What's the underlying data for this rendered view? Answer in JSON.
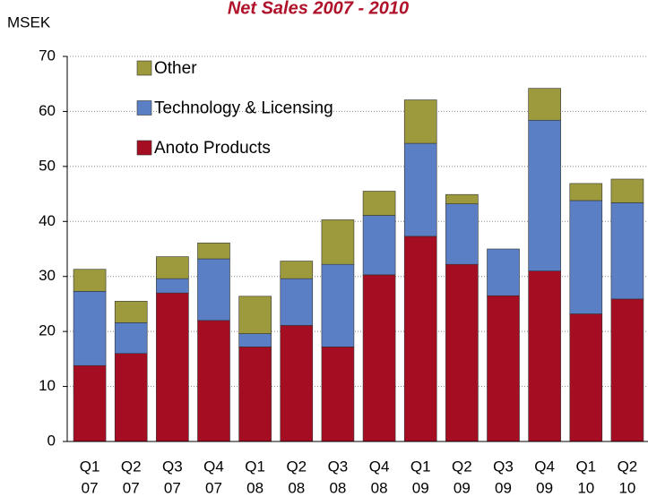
{
  "chart_data": {
    "type": "stacked_bar",
    "title": "Net Sales 2007 - 2010",
    "y_label": "MSEK",
    "categories": [
      [
        "Q1",
        "07"
      ],
      [
        "Q2",
        "07"
      ],
      [
        "Q3",
        "07"
      ],
      [
        "Q4",
        "07"
      ],
      [
        "Q1",
        "08"
      ],
      [
        "Q2",
        "08"
      ],
      [
        "Q3",
        "08"
      ],
      [
        "Q4",
        "08"
      ],
      [
        "Q1",
        "09"
      ],
      [
        "Q2",
        "09"
      ],
      [
        "Q3",
        "09"
      ],
      [
        "Q4",
        "09"
      ],
      [
        "Q1",
        "10"
      ],
      [
        "Q2",
        "10"
      ]
    ],
    "series": [
      {
        "name": "Anoto Products",
        "color": "#a50d22",
        "values": [
          13.8,
          16.0,
          27.0,
          22.0,
          17.2,
          21.1,
          17.2,
          30.3,
          37.3,
          32.2,
          26.5,
          31.0,
          23.2,
          25.9
        ]
      },
      {
        "name": "Technology & Licensing",
        "color": "#5b7fc4",
        "values": [
          13.5,
          5.6,
          2.6,
          11.2,
          2.4,
          8.5,
          15.0,
          10.8,
          16.9,
          11.0,
          8.5,
          27.4,
          20.6,
          17.5
        ]
      },
      {
        "name": "Other",
        "color": "#9c9a3c",
        "values": [
          4.0,
          3.9,
          4.0,
          2.9,
          6.8,
          3.2,
          8.1,
          4.4,
          7.9,
          1.7,
          0,
          5.8,
          3.1,
          4.3
        ]
      }
    ],
    "ylim": [
      0,
      70
    ],
    "yticks": [
      0,
      10,
      20,
      30,
      40,
      50,
      60,
      70
    ],
    "grid": true,
    "legend": "top-left"
  }
}
